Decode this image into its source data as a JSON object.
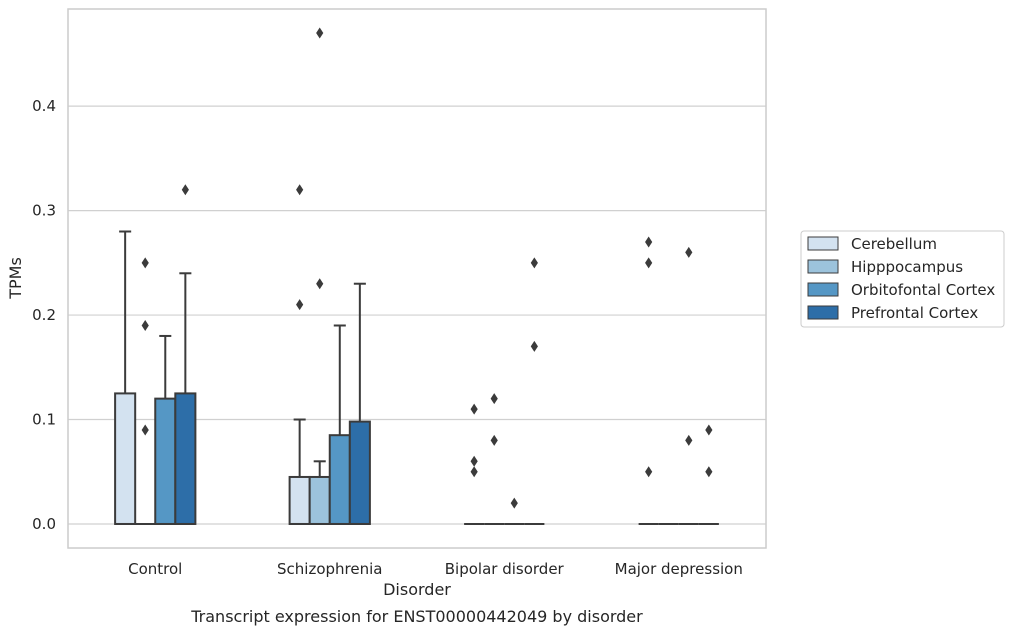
{
  "chart_data": {
    "type": "box",
    "caption": "Transcript expression for ENST00000442049 by disorder",
    "xlabel": "Disorder",
    "ylabel": "TPMs",
    "ylim": [
      -0.023,
      0.493
    ],
    "yticks": [
      0.0,
      0.1,
      0.2,
      0.3,
      0.4
    ],
    "ytick_labels": [
      "0.0",
      "0.1",
      "0.2",
      "0.3",
      "0.4"
    ],
    "grid": "horizontal",
    "legend_position": "right",
    "categories": [
      "Control",
      "Schizophrenia",
      "Bipolar disorder",
      "Major depression"
    ],
    "series": [
      {
        "name": "Cerebellum",
        "color": "#d3e2f0",
        "boxes": [
          {
            "q1": 0.0,
            "median": 0.0,
            "q3": 0.125,
            "whisker_low": 0.0,
            "whisker_high": 0.28,
            "outliers": []
          },
          {
            "q1": 0.0,
            "median": 0.0,
            "q3": 0.045,
            "whisker_low": 0.0,
            "whisker_high": 0.1,
            "outliers": [
              0.32,
              0.21
            ]
          },
          {
            "q1": 0.0,
            "median": 0.0,
            "q3": 0.0,
            "whisker_low": 0.0,
            "whisker_high": 0.0,
            "outliers": [
              0.11,
              0.06,
              0.05
            ]
          },
          {
            "q1": 0.0,
            "median": 0.0,
            "q3": 0.0,
            "whisker_low": 0.0,
            "whisker_high": 0.0,
            "outliers": [
              0.27,
              0.25,
              0.05
            ]
          }
        ]
      },
      {
        "name": "Hipppocampus",
        "color": "#9cc3dc",
        "boxes": [
          {
            "q1": 0.0,
            "median": 0.0,
            "q3": 0.0,
            "whisker_low": 0.0,
            "whisker_high": 0.0,
            "outliers": [
              0.25,
              0.19,
              0.09
            ]
          },
          {
            "q1": 0.0,
            "median": 0.0,
            "q3": 0.045,
            "whisker_low": 0.0,
            "whisker_high": 0.06,
            "outliers": [
              0.47,
              0.23
            ]
          },
          {
            "q1": 0.0,
            "median": 0.0,
            "q3": 0.0,
            "whisker_low": 0.0,
            "whisker_high": 0.0,
            "outliers": [
              0.12,
              0.08
            ]
          },
          {
            "q1": 0.0,
            "median": 0.0,
            "q3": 0.0,
            "whisker_low": 0.0,
            "whisker_high": 0.0,
            "outliers": []
          }
        ]
      },
      {
        "name": "Orbitofontal Cortex",
        "color": "#5597c5",
        "boxes": [
          {
            "q1": 0.0,
            "median": 0.0,
            "q3": 0.12,
            "whisker_low": 0.0,
            "whisker_high": 0.18,
            "outliers": []
          },
          {
            "q1": 0.0,
            "median": 0.0,
            "q3": 0.085,
            "whisker_low": 0.0,
            "whisker_high": 0.19,
            "outliers": []
          },
          {
            "q1": 0.0,
            "median": 0.0,
            "q3": 0.0,
            "whisker_low": 0.0,
            "whisker_high": 0.0,
            "outliers": [
              0.02
            ]
          },
          {
            "q1": 0.0,
            "median": 0.0,
            "q3": 0.0,
            "whisker_low": 0.0,
            "whisker_high": 0.0,
            "outliers": [
              0.26,
              0.08
            ]
          }
        ]
      },
      {
        "name": "Prefrontal Cortex",
        "color": "#2d6ea8",
        "boxes": [
          {
            "q1": 0.0,
            "median": 0.0,
            "q3": 0.125,
            "whisker_low": 0.0,
            "whisker_high": 0.24,
            "outliers": [
              0.32
            ]
          },
          {
            "q1": 0.0,
            "median": 0.0,
            "q3": 0.098,
            "whisker_low": 0.0,
            "whisker_high": 0.23,
            "outliers": []
          },
          {
            "q1": 0.0,
            "median": 0.0,
            "q3": 0.0,
            "whisker_low": 0.0,
            "whisker_high": 0.0,
            "outliers": [
              0.25,
              0.17
            ]
          },
          {
            "q1": 0.0,
            "median": 0.0,
            "q3": 0.0,
            "whisker_low": 0.0,
            "whisker_high": 0.0,
            "outliers": [
              0.09,
              0.05
            ]
          }
        ]
      }
    ]
  }
}
